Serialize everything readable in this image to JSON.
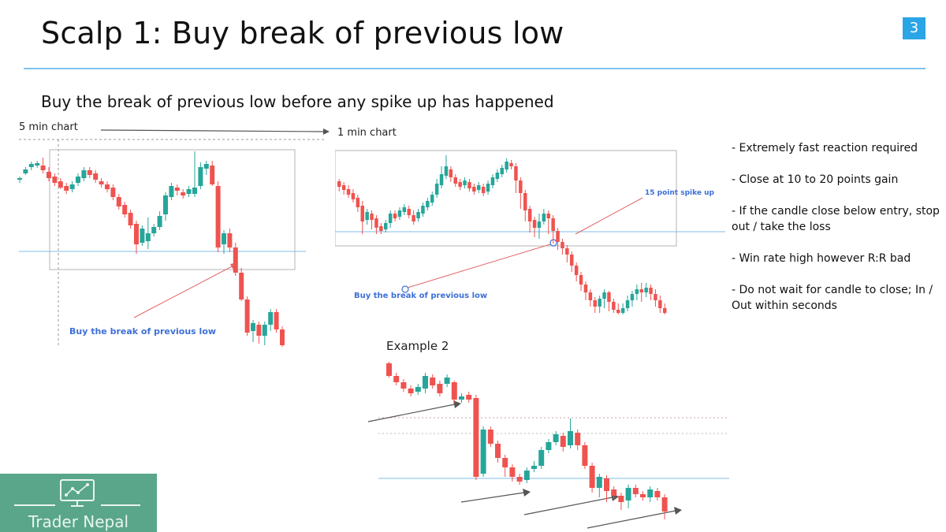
{
  "slide": {
    "title": "Scalp 1: Buy break of previous low",
    "page_number": "3",
    "subtitle": "Buy the break of previous low before any spike up has happened"
  },
  "labels": {
    "five_min": "5 min chart",
    "one_min": "1 min chart",
    "example2": "Example 2",
    "buy_break_a": "Buy the break of previous low",
    "buy_break_b": "Buy the break of previous low",
    "spike": "15 point spike up"
  },
  "bullets": [
    "- Extremely fast reaction required",
    "- Close at 10 to 20 points gain",
    "- If the candle close below entry, stop out / take the loss",
    "- Win rate high however R:R bad",
    "- Do not wait for candle to close; In / Out within seconds"
  ],
  "logo": {
    "text": "Trader Nepal",
    "icon": "monitor-chart-icon"
  },
  "colors": {
    "bull": "#26a69a",
    "bear": "#ef5350",
    "accent": "#2aa5e6",
    "logo_bg": "#5aa68a"
  }
}
